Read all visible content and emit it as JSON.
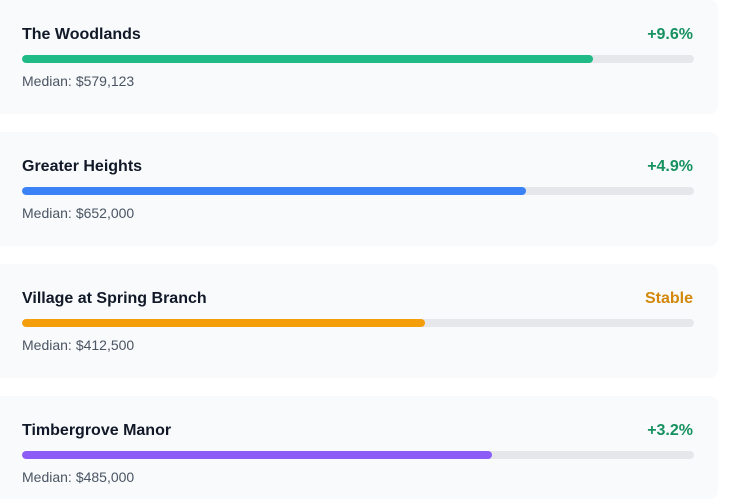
{
  "median_label": "Median:",
  "areas": [
    {
      "name": "The Woodlands",
      "change": "+9.6%",
      "change_color": "#16915f",
      "median": "$579,123",
      "bar_fraction": 0.85,
      "bar_color": "#1fba86"
    },
    {
      "name": "Greater Heights",
      "change": "+4.9%",
      "change_color": "#16915f",
      "median": "$652,000",
      "bar_fraction": 0.75,
      "bar_color": "#3b82f6"
    },
    {
      "name": "Village at Spring Branch",
      "change": "Stable",
      "change_color": "#d4880a",
      "median": "$412,500",
      "bar_fraction": 0.6,
      "bar_color": "#f59e0b"
    },
    {
      "name": "Timbergrove Manor",
      "change": "+3.2%",
      "change_color": "#16915f",
      "median": "$485,000",
      "bar_fraction": 0.7,
      "bar_color": "#8b5cf6"
    }
  ]
}
